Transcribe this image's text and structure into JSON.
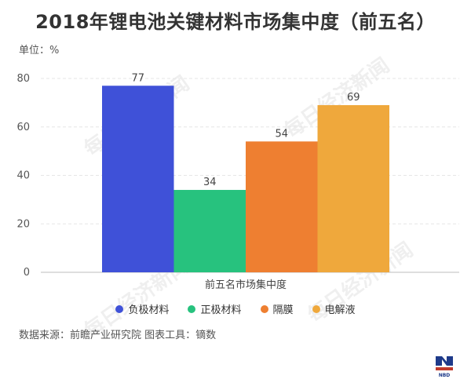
{
  "title": "2018年锂电池关键材料市场集中度（前五名）",
  "unit_label": "单位：%",
  "source": "数据来源：前瞻产业研究院  图表工具：镝数",
  "watermark": "每日经济新闻",
  "logo_text": "NBD",
  "chart_data": {
    "type": "bar",
    "categories": [
      "前五名市场集中度"
    ],
    "series": [
      {
        "name": "负极材料",
        "values": [
          77
        ],
        "color": "#3f51d8"
      },
      {
        "name": "正极材料",
        "values": [
          34
        ],
        "color": "#27c27e"
      },
      {
        "name": "隔膜",
        "values": [
          54
        ],
        "color": "#ee7f31"
      },
      {
        "name": "电解液",
        "values": [
          69
        ],
        "color": "#efa83c"
      }
    ],
    "ylim": [
      0,
      80
    ],
    "yticks": [
      0,
      20,
      40,
      60,
      80
    ],
    "grid": true,
    "legend": "bottom"
  }
}
